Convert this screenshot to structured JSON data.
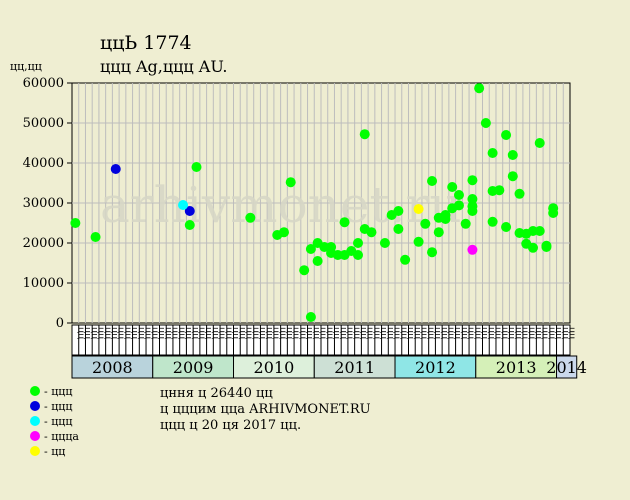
{
  "title": "ццЬ 1774",
  "subtitle": "ццц Ag,ццц AU.",
  "ylabel": "цц,цц",
  "colors": {
    "background": "#efeed2",
    "plot_bg": "#eeedd1",
    "grid": "#bdbdbd"
  },
  "notes": [
    "цння ц 26440 цц",
    "ц цццим цца ARHIVMONET.RU",
    "ццц ц 20 ця 2017 цц."
  ],
  "legend": [
    {
      "label": "- ццц",
      "color": "#00ff00"
    },
    {
      "label": "- ццц",
      "color": "#0000dd"
    },
    {
      "label": "- ццц",
      "color": "#00ffff"
    },
    {
      "label": "- ццца",
      "color": "#ff00ff"
    },
    {
      "label": "- цц",
      "color": "#ffff00"
    }
  ],
  "chart_data": {
    "type": "scatter",
    "title": "ццЬ 1774",
    "subtitle": "ццц Ag,ццц AU.",
    "ylabel": "цц,цц",
    "ylim": [
      0,
      60000
    ],
    "yticks": [
      0,
      10000,
      20000,
      30000,
      40000,
      50000,
      60000
    ],
    "grid": true,
    "watermark": "arhivmonet.ru",
    "x_unit": "month",
    "xlim": [
      "2008-01",
      "2014-03"
    ],
    "month_labels": [
      "цц",
      "цц",
      "цц",
      "цц",
      "цц",
      "цц",
      "цц",
      "цц",
      "цц",
      "цц",
      "цц",
      "цц"
    ],
    "years": [
      {
        "label": "2008",
        "start": "2008-01",
        "months": 12,
        "color": "#b9d3dc"
      },
      {
        "label": "2009",
        "start": "2009-01",
        "months": 12,
        "color": "#bfe6cb"
      },
      {
        "label": "2010",
        "start": "2010-01",
        "months": 12,
        "color": "#ddf0db"
      },
      {
        "label": "2011",
        "start": "2011-01",
        "months": 12,
        "color": "#cde0d5"
      },
      {
        "label": "2012",
        "start": "2012-01",
        "months": 12,
        "color": "#8fe6e6"
      },
      {
        "label": "2013",
        "start": "2013-01",
        "months": 12,
        "color": "#d5f0b8"
      },
      {
        "label": "2014",
        "start": "2014-01",
        "months": 3,
        "color": "#cbd9ec"
      }
    ],
    "series": [
      {
        "color": "#00ff00",
        "points": [
          [
            "2008-01",
            25000
          ],
          [
            "2008-04",
            21500
          ],
          [
            "2009-06",
            24500
          ],
          [
            "2009-07",
            39000
          ],
          [
            "2010-03",
            26300
          ],
          [
            "2010-07",
            22000
          ],
          [
            "2010-08",
            22700
          ],
          [
            "2010-09",
            35200
          ],
          [
            "2010-11",
            13200
          ],
          [
            "2011-00",
            18500
          ],
          [
            "2011-00",
            1500
          ],
          [
            "2011-01",
            15500
          ],
          [
            "2011-01",
            20000
          ],
          [
            "2011-02",
            19000
          ],
          [
            "2011-03",
            17500
          ],
          [
            "2011-03",
            19000
          ],
          [
            "2011-04",
            17000
          ],
          [
            "2011-05",
            25200
          ],
          [
            "2011-05",
            17000
          ],
          [
            "2011-06",
            18000
          ],
          [
            "2011-07",
            17000
          ],
          [
            "2011-07",
            20000
          ],
          [
            "2011-08",
            23500
          ],
          [
            "2011-08",
            47200
          ],
          [
            "2011-09",
            22700
          ],
          [
            "2011-11",
            20000
          ],
          [
            "2012-00",
            27000
          ],
          [
            "2012-01",
            23500
          ],
          [
            "2012-01",
            28000
          ],
          [
            "2012-02",
            15800
          ],
          [
            "2012-04",
            20300
          ],
          [
            "2012-05",
            24800
          ],
          [
            "2012-06",
            17700
          ],
          [
            "2012-06",
            35500
          ],
          [
            "2012-07",
            22700
          ],
          [
            "2012-07",
            26300
          ],
          [
            "2012-08",
            26000
          ],
          [
            "2012-08",
            27000
          ],
          [
            "2012-09",
            34000
          ],
          [
            "2012-09",
            28700
          ],
          [
            "2012-10",
            29400
          ],
          [
            "2012-10",
            32000
          ],
          [
            "2012-11",
            24800
          ],
          [
            "2012-12",
            31000
          ],
          [
            "2012-12",
            28000
          ],
          [
            "2013-00",
            35700
          ],
          [
            "2013-00",
            29200
          ],
          [
            "2013-01",
            58700
          ],
          [
            "2013-02",
            50000
          ],
          [
            "2013-03",
            25300
          ],
          [
            "2013-03",
            42500
          ],
          [
            "2013-03",
            33000
          ],
          [
            "2013-04",
            33200
          ],
          [
            "2013-05",
            47000
          ],
          [
            "2013-05",
            24000
          ],
          [
            "2013-06",
            36700
          ],
          [
            "2013-06",
            42000
          ],
          [
            "2013-07",
            32300
          ],
          [
            "2013-07",
            22500
          ],
          [
            "2013-08",
            19800
          ],
          [
            "2013-08",
            22300
          ],
          [
            "2013-09",
            18800
          ],
          [
            "2013-09",
            23000
          ],
          [
            "2013-10",
            23000
          ],
          [
            "2013-10",
            45000
          ],
          [
            "2013-11",
            19000
          ],
          [
            "2013-11",
            19300
          ],
          [
            "2013-12",
            28700
          ],
          [
            "2013-12",
            27500
          ]
        ]
      },
      {
        "color": "#0000dd",
        "points": [
          [
            "2008-07",
            38500
          ],
          [
            "2009-06",
            28000
          ]
        ]
      },
      {
        "color": "#00ffff",
        "points": [
          [
            "2009-05",
            29500
          ]
        ]
      },
      {
        "color": "#ff00ff",
        "points": [
          [
            "2013-00",
            18300
          ]
        ]
      },
      {
        "color": "#ffff00",
        "points": [
          [
            "2012-04",
            28500
          ]
        ]
      }
    ]
  }
}
